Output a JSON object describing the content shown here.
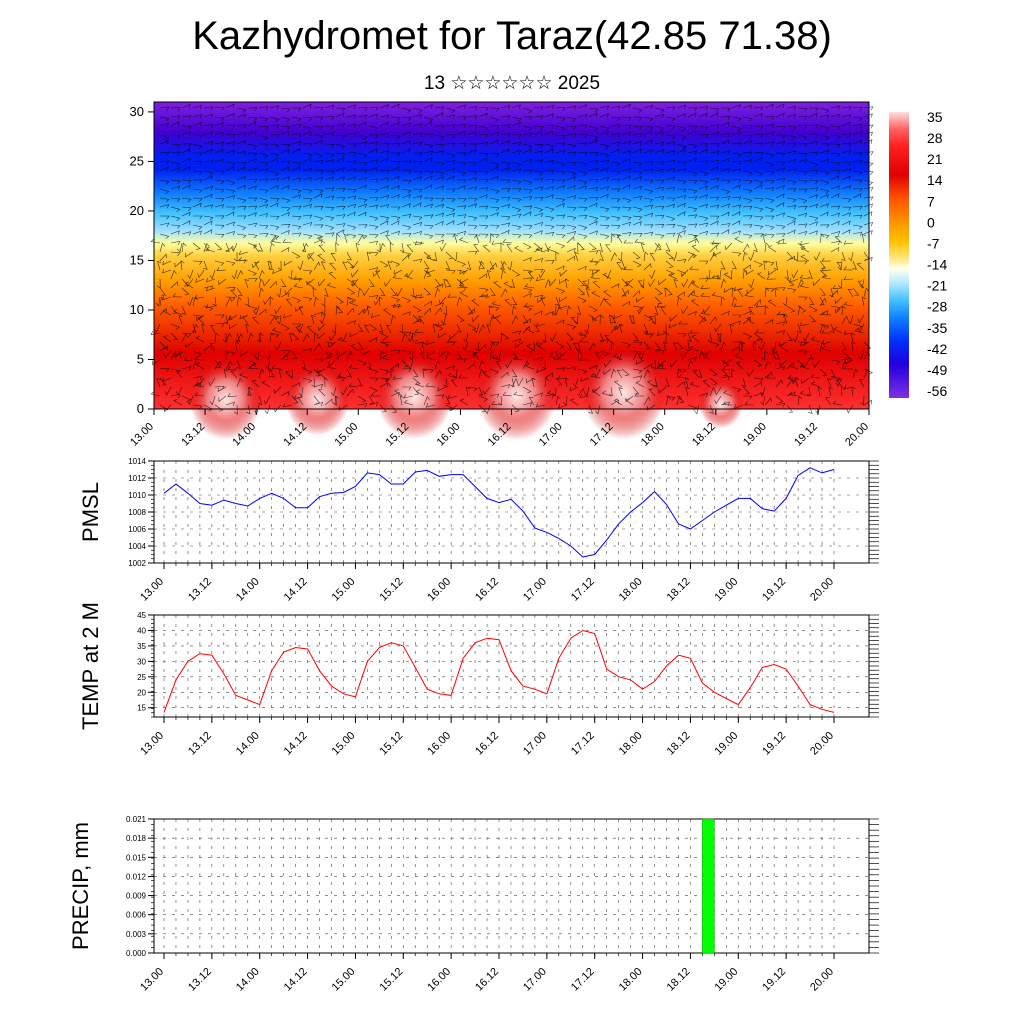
{
  "header": {
    "title": "Kazhydromet for Taraz(42.85 71.38)",
    "subtitle": "13 ☆☆☆☆☆☆ 2025"
  },
  "chart_data": [
    {
      "type": "heatmap",
      "name": "temperature-cross-section",
      "xlabel": "",
      "ylabel": "",
      "x_ticks": [
        "13.00",
        "13.12",
        "14.00",
        "14.12",
        "15.00",
        "15.12",
        "16.00",
        "16.12",
        "17.00",
        "17.12",
        "18.00",
        "18.12",
        "19.00",
        "19.12",
        "20.00"
      ],
      "y_ticks": [
        "0",
        "5",
        "10",
        "15",
        "20",
        "25",
        "30"
      ],
      "ylim": [
        0,
        31
      ],
      "colorbar_labels": [
        "35",
        "28",
        "21",
        "14",
        "7",
        "0",
        "-7",
        "-14",
        "-21",
        "-28",
        "-35",
        "-42",
        "-49",
        "-56"
      ],
      "colormap": [
        "#ffe0e0",
        "#ff3030",
        "#e00000",
        "#ff6000",
        "#ffa000",
        "#ffd040",
        "#ffffa0",
        "#a0e0ff",
        "#40c0ff",
        "#1080ff",
        "#0020f0",
        "#4000d0",
        "#8020e0"
      ],
      "wind_barbs": true
    },
    {
      "type": "line",
      "name": "pmsl",
      "ylabel": "PMSL",
      "y_ticks": [
        "1002",
        "1004",
        "1006",
        "1008",
        "1010",
        "1012",
        "1014"
      ],
      "ylim": [
        1002,
        1014
      ],
      "x_ticks": [
        "13.00",
        "13.12",
        "14.00",
        "14.12",
        "15.00",
        "15.12",
        "16.00",
        "16.12",
        "17.00",
        "17.12",
        "18.00",
        "18.12",
        "19.00",
        "19.12",
        "20.00"
      ],
      "color": "#0000ff",
      "values": [
        1010.2,
        1011.3,
        1010.2,
        1009.0,
        1008.8,
        1009.4,
        1009.0,
        1008.7,
        1009.6,
        1010.2,
        1009.6,
        1008.5,
        1008.5,
        1009.8,
        1010.2,
        1010.3,
        1011.0,
        1012.6,
        1012.4,
        1011.3,
        1011.3,
        1012.7,
        1012.9,
        1012.2,
        1012.4,
        1012.4,
        1011.0,
        1009.6,
        1009.1,
        1009.5,
        1008.1,
        1006.1,
        1005.6,
        1004.9,
        1004.0,
        1002.7,
        1003.0,
        1004.7,
        1006.6,
        1008.0,
        1009.1,
        1010.4,
        1008.9,
        1006.6,
        1006.0,
        1007.0,
        1008.0,
        1008.8,
        1009.6,
        1009.6,
        1008.4,
        1008.1,
        1009.6,
        1012.3,
        1013.2,
        1012.6,
        1013.0
      ]
    },
    {
      "type": "line",
      "name": "temp-2m",
      "ylabel": "TEMP at 2 M",
      "y_ticks": [
        "15",
        "20",
        "25",
        "30",
        "35",
        "40",
        "45"
      ],
      "ylim": [
        12,
        45
      ],
      "x_ticks": [
        "13.00",
        "13.12",
        "14.00",
        "14.12",
        "15.00",
        "15.12",
        "16.00",
        "16.12",
        "17.00",
        "17.12",
        "18.00",
        "18.12",
        "19.00",
        "19.12",
        "20.00"
      ],
      "color": "#ff0000",
      "values": [
        13.5,
        24,
        30,
        32.5,
        32,
        26,
        19,
        17.5,
        16,
        27,
        33,
        34.5,
        34,
        27,
        22,
        19.5,
        18.5,
        30,
        34.5,
        36,
        35,
        28,
        21,
        19.5,
        19,
        31,
        36,
        37.5,
        37,
        27,
        22,
        21,
        19.5,
        31,
        37.5,
        40,
        39,
        27.5,
        25,
        24,
        21,
        23.5,
        28.5,
        32,
        31,
        23,
        20,
        18,
        16,
        21.5,
        28,
        29,
        27.5,
        22,
        16,
        14.5,
        13.5
      ]
    },
    {
      "type": "bar",
      "name": "precip",
      "ylabel": "PRECIP, mm",
      "y_ticks": [
        "0.000",
        "0.003",
        "0.006",
        "0.009",
        "0.012",
        "0.015",
        "0.018",
        "0.021"
      ],
      "ylim": [
        0,
        0.021
      ],
      "x_ticks": [
        "13.00",
        "13.12",
        "14.00",
        "14.12",
        "15.00",
        "15.12",
        "16.00",
        "16.12",
        "17.00",
        "17.12",
        "18.00",
        "18.12",
        "19.00",
        "19.12",
        "20.00"
      ],
      "color": "#00ff00",
      "bars": [
        {
          "x_index": 45.5,
          "value": 0.021
        }
      ]
    }
  ]
}
